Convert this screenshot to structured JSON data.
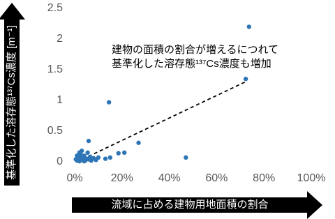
{
  "chart_data": {
    "type": "scatter",
    "ylabel": "基準化した溶存態¹³⁷Cs濃度 [m⁻¹]",
    "xlabel": "流域に占める建物用地面積の割合",
    "annotation": [
      "建物の面積の割合が増えるにつれて",
      "基準化した溶存態¹³⁷Cs濃度も増加"
    ],
    "color": "#2e75b6",
    "x": [
      73.7,
      72.3,
      14.5,
      27,
      47,
      5.9,
      21,
      18.5,
      15,
      13,
      1,
      1.5,
      2,
      2.5,
      3,
      3,
      3.5,
      4,
      4.5,
      5,
      5.5,
      6,
      6.5,
      7,
      8,
      9,
      2,
      1,
      2,
      4,
      0.5,
      10
    ],
    "values": [
      2.2,
      1.35,
      0.97,
      0.31,
      0.07,
      0.34,
      0.15,
      0.14,
      0.07,
      0.05,
      0.02,
      0.05,
      0.08,
      0.12,
      0.18,
      0.03,
      0.06,
      0.1,
      0.02,
      0.05,
      0.15,
      0.04,
      0.08,
      0.02,
      0.06,
      0.03,
      0.15,
      0.1,
      0.01,
      0.01,
      0.04,
      0.07
    ],
    "trendline": {
      "x": [
        1,
        72
      ],
      "values": [
        0,
        1.3
      ]
    },
    "xlim": [
      0,
      100
    ],
    "ylim": [
      0,
      2.5
    ],
    "xticks": [
      {
        "value": 0,
        "label": "0%"
      },
      {
        "value": 20,
        "label": "20%"
      },
      {
        "value": 40,
        "label": "40%"
      },
      {
        "value": 60,
        "label": "60%"
      },
      {
        "value": 80,
        "label": "80%"
      },
      {
        "value": 100,
        "label": "100%"
      }
    ],
    "yticks": [
      0,
      0.5,
      1,
      1.5,
      2,
      2.5
    ],
    "grid": false
  }
}
